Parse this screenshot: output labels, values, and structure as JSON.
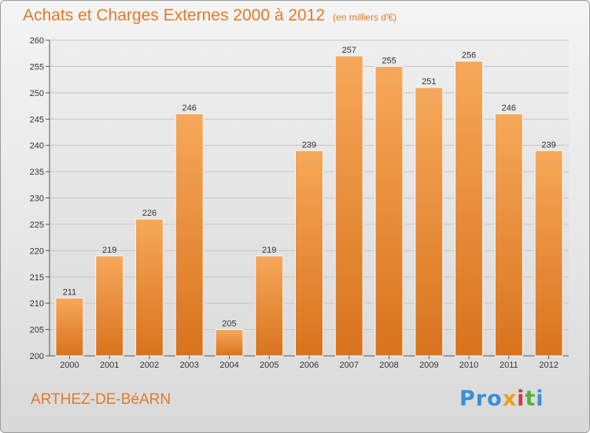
{
  "header": {
    "title": "Achats et Charges Externes 2000 à 2012",
    "subtitle": "(en milliers d'€)"
  },
  "footer": {
    "commune": "ARTHEZ-DE-BéARN",
    "brand_letters": [
      {
        "ch": "P",
        "color": "#3a8fd6"
      },
      {
        "ch": "r",
        "color": "#3a8fd6"
      },
      {
        "ch": "o",
        "color": "#3a8fd6"
      },
      {
        "ch": "x",
        "color": "#e8a21a"
      },
      {
        "ch": "i",
        "color": "#d23c3c"
      },
      {
        "ch": "t",
        "color": "#5aae3b"
      },
      {
        "ch": "i",
        "color": "#3a8fd6"
      }
    ]
  },
  "colors": {
    "accent": "#e07a2a",
    "bar_top": "#f6a85a",
    "bar_bottom": "#d9731d"
  },
  "chart_data": {
    "type": "bar",
    "title": "Achats et Charges Externes 2000 à 2012",
    "subtitle": "(en milliers d'€)",
    "categories": [
      "2000",
      "2001",
      "2002",
      "2003",
      "2004",
      "2005",
      "2006",
      "2007",
      "2008",
      "2009",
      "2010",
      "2011",
      "2012"
    ],
    "values": [
      211,
      219,
      226,
      246,
      205,
      219,
      239,
      257,
      255,
      251,
      256,
      246,
      239
    ],
    "ylim": [
      200,
      260
    ],
    "yticks": [
      200,
      205,
      210,
      215,
      220,
      225,
      230,
      235,
      240,
      245,
      250,
      255,
      260
    ],
    "grid": true,
    "xlabel": "",
    "ylabel": ""
  }
}
